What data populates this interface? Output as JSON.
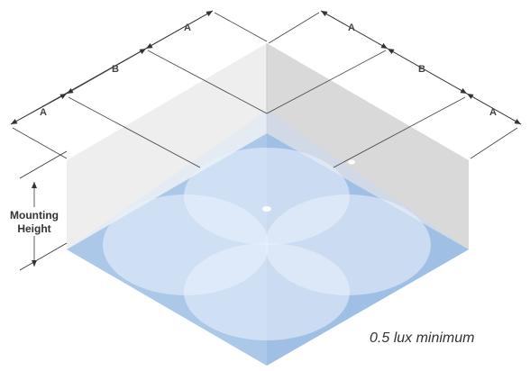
{
  "dimensions": {
    "a": "A",
    "b": "B"
  },
  "side_label": {
    "line1": "Mounting",
    "line2": "Height"
  },
  "caption": "0.5 lux minimum",
  "colors": {
    "floor": "#6fa0d8",
    "floor_light": "#c6dbf4",
    "wall_light": "#eeeeee",
    "wall_dark": "#d9d9d9",
    "dimension_line": "#333333"
  }
}
